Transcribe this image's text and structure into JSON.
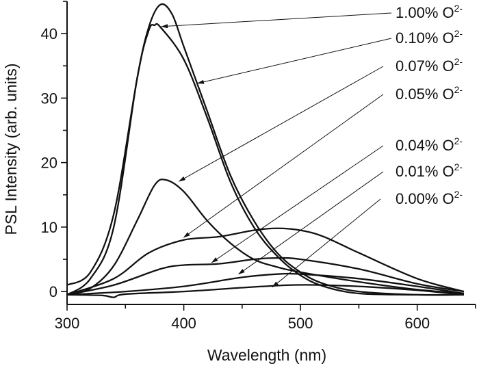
{
  "chart_data": {
    "type": "line",
    "title": "",
    "xlabel": "Wavelength (nm)",
    "ylabel": "PSL Intensity (arb. units)",
    "xlim": [
      300,
      650
    ],
    "ylim": [
      -2,
      45
    ],
    "xticks": [
      300,
      400,
      500,
      600
    ],
    "yticks": [
      0,
      10,
      20,
      30,
      40
    ],
    "grid": false,
    "line_color": "#111111",
    "series": [
      {
        "name": "1.00% O2-",
        "x": [
          300,
          320,
          340,
          360,
          370,
          380,
          390,
          400,
          420,
          440,
          460,
          480,
          500,
          520,
          550,
          600,
          640
        ],
        "y": [
          1,
          3,
          12,
          33,
          41,
          44.5,
          43,
          38,
          28,
          18,
          11,
          6,
          3,
          1.2,
          0,
          -0.5,
          -0.5
        ]
      },
      {
        "name": "0.10% O2-",
        "x": [
          300,
          320,
          340,
          360,
          370,
          375,
          380,
          400,
          420,
          440,
          460,
          480,
          500,
          520,
          550,
          600,
          640
        ],
        "y": [
          -0.5,
          2,
          10,
          33,
          40.5,
          41.3,
          41,
          36,
          27,
          17,
          10,
          5.5,
          2.5,
          0.8,
          -0.3,
          -0.5,
          -0.5
        ]
      },
      {
        "name": "0.07% O2-",
        "x": [
          300,
          320,
          340,
          360,
          375,
          385,
          400,
          420,
          440,
          460,
          480,
          500,
          550,
          600,
          640
        ],
        "y": [
          -0.5,
          0.5,
          4,
          11,
          16.5,
          17.3,
          15.5,
          11,
          7.5,
          5,
          3.8,
          3,
          1.5,
          0.3,
          -0.3
        ]
      },
      {
        "name": "0.05% O2-",
        "x": [
          300,
          340,
          370,
          400,
          430,
          460,
          480,
          500,
          520,
          550,
          600,
          640
        ],
        "y": [
          -0.5,
          2,
          6,
          8,
          8.5,
          9.5,
          9.8,
          9.5,
          8.5,
          6,
          2,
          0
        ]
      },
      {
        "name": "0.04% O2-",
        "x": [
          300,
          340,
          380,
          400,
          430,
          460,
          480,
          500,
          550,
          600,
          640
        ],
        "y": [
          -0.5,
          1,
          3.5,
          4.1,
          4.3,
          5,
          5.2,
          5,
          3.5,
          1.2,
          0
        ]
      },
      {
        "name": "0.01% O2-",
        "x": [
          300,
          350,
          400,
          450,
          480,
          500,
          550,
          600,
          640
        ],
        "y": [
          -0.5,
          0,
          0.8,
          2.2,
          2.7,
          2.7,
          2,
          0.8,
          -0.3
        ]
      },
      {
        "name": "0.00% O2-",
        "x": [
          300,
          330,
          340,
          350,
          400,
          450,
          490,
          520,
          560,
          600,
          640
        ],
        "y": [
          -0.5,
          -0.6,
          -0.9,
          -0.4,
          0,
          0.6,
          1,
          1,
          0.7,
          0.2,
          -0.5
        ]
      }
    ],
    "annotations": [
      {
        "text": "1.00% O",
        "sup": "2-",
        "arrow_to": [
          381,
          41.1
        ]
      },
      {
        "text": "0.10% O",
        "sup": "2-",
        "arrow_to": [
          412,
          32.3
        ]
      },
      {
        "text": "0.07% O",
        "sup": "2-",
        "arrow_to": [
          396,
          17.1
        ]
      },
      {
        "text": "0.05% O",
        "sup": "2-",
        "arrow_to": [
          400,
          8.4
        ]
      },
      {
        "text": "0.04% O",
        "sup": "2-",
        "arrow_to": [
          424,
          4.5
        ]
      },
      {
        "text": "0.01% O",
        "sup": "2-",
        "arrow_to": [
          447,
          2.7
        ]
      },
      {
        "text": "0.00% O",
        "sup": "2-",
        "arrow_to": [
          476,
          0.7
        ]
      }
    ]
  }
}
